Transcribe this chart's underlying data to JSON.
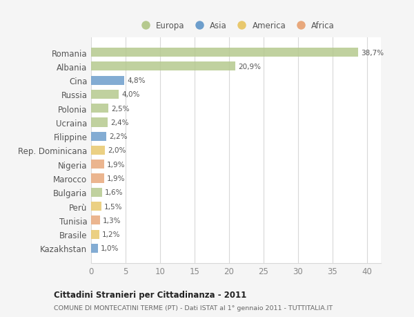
{
  "countries": [
    "Romania",
    "Albania",
    "Cina",
    "Russia",
    "Polonia",
    "Ucraina",
    "Filippine",
    "Rep. Dominicana",
    "Nigeria",
    "Marocco",
    "Bulgaria",
    "Perù",
    "Tunisia",
    "Brasile",
    "Kazakhstan"
  ],
  "values": [
    38.7,
    20.9,
    4.8,
    4.0,
    2.5,
    2.4,
    2.2,
    2.0,
    1.9,
    1.9,
    1.6,
    1.5,
    1.3,
    1.2,
    1.0
  ],
  "labels": [
    "38,7%",
    "20,9%",
    "4,8%",
    "4,0%",
    "2,5%",
    "2,4%",
    "2,2%",
    "2,0%",
    "1,9%",
    "1,9%",
    "1,6%",
    "1,5%",
    "1,3%",
    "1,2%",
    "1,0%"
  ],
  "colors": [
    "#b5c98e",
    "#b5c98e",
    "#6d9ecc",
    "#b5c98e",
    "#b5c98e",
    "#b5c98e",
    "#6d9ecc",
    "#e8c86d",
    "#e8a87c",
    "#e8a87c",
    "#b5c98e",
    "#e8c86d",
    "#e8a87c",
    "#e8c86d",
    "#6d9ecc"
  ],
  "legend_labels": [
    "Europa",
    "Asia",
    "America",
    "Africa"
  ],
  "legend_colors": [
    "#b5c98e",
    "#6d9ecc",
    "#e8c86d",
    "#e8a87c"
  ],
  "title": "Cittadini Stranieri per Cittadinanza - 2011",
  "subtitle": "COMUNE DI MONTECATINI TERME (PT) - Dati ISTAT al 1° gennaio 2011 - TUTTITALIA.IT",
  "xlim": [
    0,
    42
  ],
  "xticks": [
    0,
    5,
    10,
    15,
    20,
    25,
    30,
    35,
    40
  ],
  "bg_color": "#f5f5f5",
  "bar_bg_color": "#ffffff",
  "grid_color": "#d8d8d8"
}
